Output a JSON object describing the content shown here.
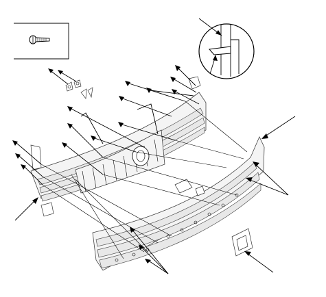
{
  "diagram": {
    "type": "exploded-parts-view",
    "callouts": {
      "screw_inset": "screw-icon",
      "detail_inset": "clip-detail"
    },
    "colors": {
      "line": "#000000",
      "part_fill": "#f4f4f4",
      "background": "#ffffff"
    }
  }
}
